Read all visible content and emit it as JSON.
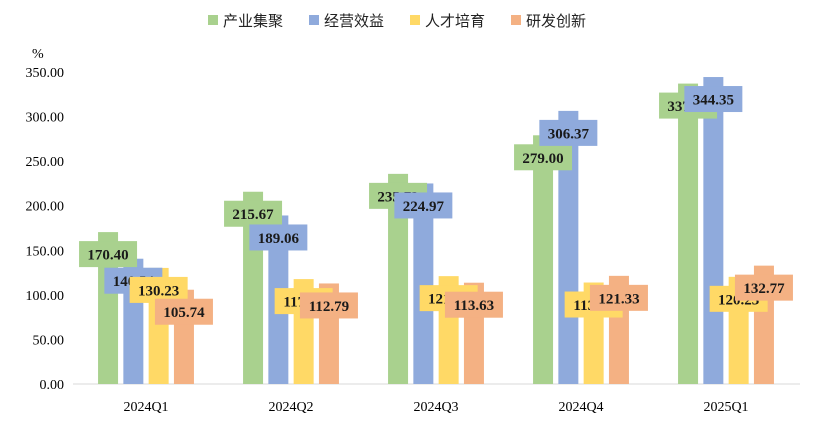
{
  "chart_data": {
    "type": "bar",
    "title": "",
    "ylabel": "%",
    "xlabel": "",
    "ylim": [
      0,
      350
    ],
    "yticks": [
      "0.00",
      "50.00",
      "100.00",
      "150.00",
      "200.00",
      "250.00",
      "300.00",
      "350.00"
    ],
    "grid": false,
    "legend_position": "top",
    "categories": [
      "2024Q1",
      "2024Q2",
      "2024Q3",
      "2024Q4",
      "2025Q1"
    ],
    "series": [
      {
        "name": "产业集聚",
        "color": "#a9d18e",
        "values": [
          170.4,
          215.67,
          235.73,
          279.0,
          337.0
        ]
      },
      {
        "name": "经营效益",
        "color": "#8faadc",
        "values": [
          140.54,
          189.06,
          224.97,
          306.37,
          344.35
        ]
      },
      {
        "name": "人才培育",
        "color": "#ffd966",
        "values": [
          130.23,
          117.68,
          121.01,
          113.84,
          120.23
        ]
      },
      {
        "name": "研发创新",
        "color": "#f4b183",
        "values": [
          105.74,
          112.79,
          113.63,
          121.33,
          132.77
        ]
      }
    ]
  }
}
